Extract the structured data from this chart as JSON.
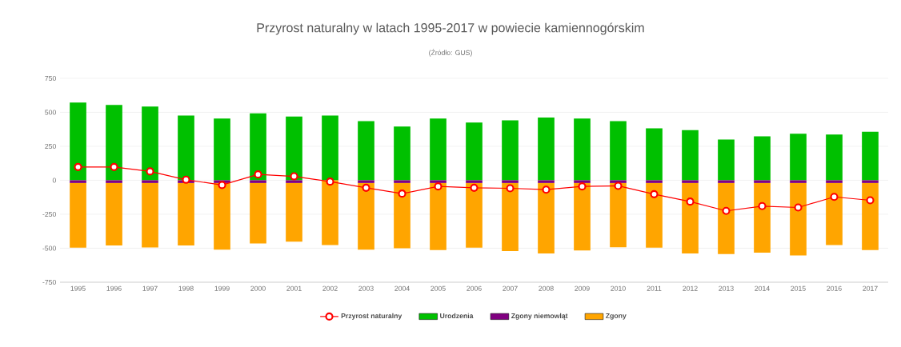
{
  "chart_data": {
    "type": "bar",
    "stacked": true,
    "title": "Przyrost naturalny w latach 1995-2017 w powiecie kamiennogórskim",
    "subtitle": "(Źródło: GUS)",
    "categories": [
      "1995",
      "1996",
      "1997",
      "1998",
      "1999",
      "2000",
      "2001",
      "2002",
      "2003",
      "2004",
      "2005",
      "2006",
      "2007",
      "2008",
      "2009",
      "2010",
      "2011",
      "2012",
      "2013",
      "2014",
      "2015",
      "2016",
      "2017"
    ],
    "series": [
      {
        "name": "Przyrost naturalny",
        "type": "line",
        "marker": "circle",
        "color": "#ff0000",
        "values": [
          98,
          98,
          65,
          4,
          -35,
          43,
          29,
          -10,
          -55,
          -98,
          -45,
          -55,
          -59,
          -69,
          -45,
          -41,
          -102,
          -157,
          -225,
          -190,
          -200,
          -122,
          -147
        ]
      },
      {
        "name": "Urodzenia",
        "color": "#00c000",
        "values": [
          572,
          555,
          543,
          476,
          455,
          492,
          469,
          476,
          435,
          396,
          455,
          425,
          441,
          461,
          455,
          435,
          382,
          369,
          300,
          323,
          343,
          337,
          357
        ]
      },
      {
        "name": "Zgony niemowląt",
        "color": "#800080",
        "values": [
          -20,
          -20,
          -20,
          -20,
          -20,
          -20,
          -20,
          null,
          -20,
          -20,
          -20,
          -20,
          -20,
          -20,
          -20,
          -20,
          -20,
          -20,
          -20,
          -20,
          -20,
          -20,
          -20
        ]
      },
      {
        "name": "Zgony",
        "color": "#ffa500",
        "values": [
          -476,
          -460,
          -474,
          -460,
          -490,
          -445,
          -431,
          -476,
          -490,
          -480,
          -494,
          -476,
          -500,
          -519,
          -496,
          -472,
          -476,
          -519,
          -523,
          -513,
          -533,
          -456,
          -494
        ]
      }
    ],
    "ylim": [
      -750,
      750
    ],
    "yticks": [
      -750,
      -500,
      -250,
      0,
      250,
      500,
      750
    ],
    "grid": "y",
    "legend": "bottom"
  }
}
